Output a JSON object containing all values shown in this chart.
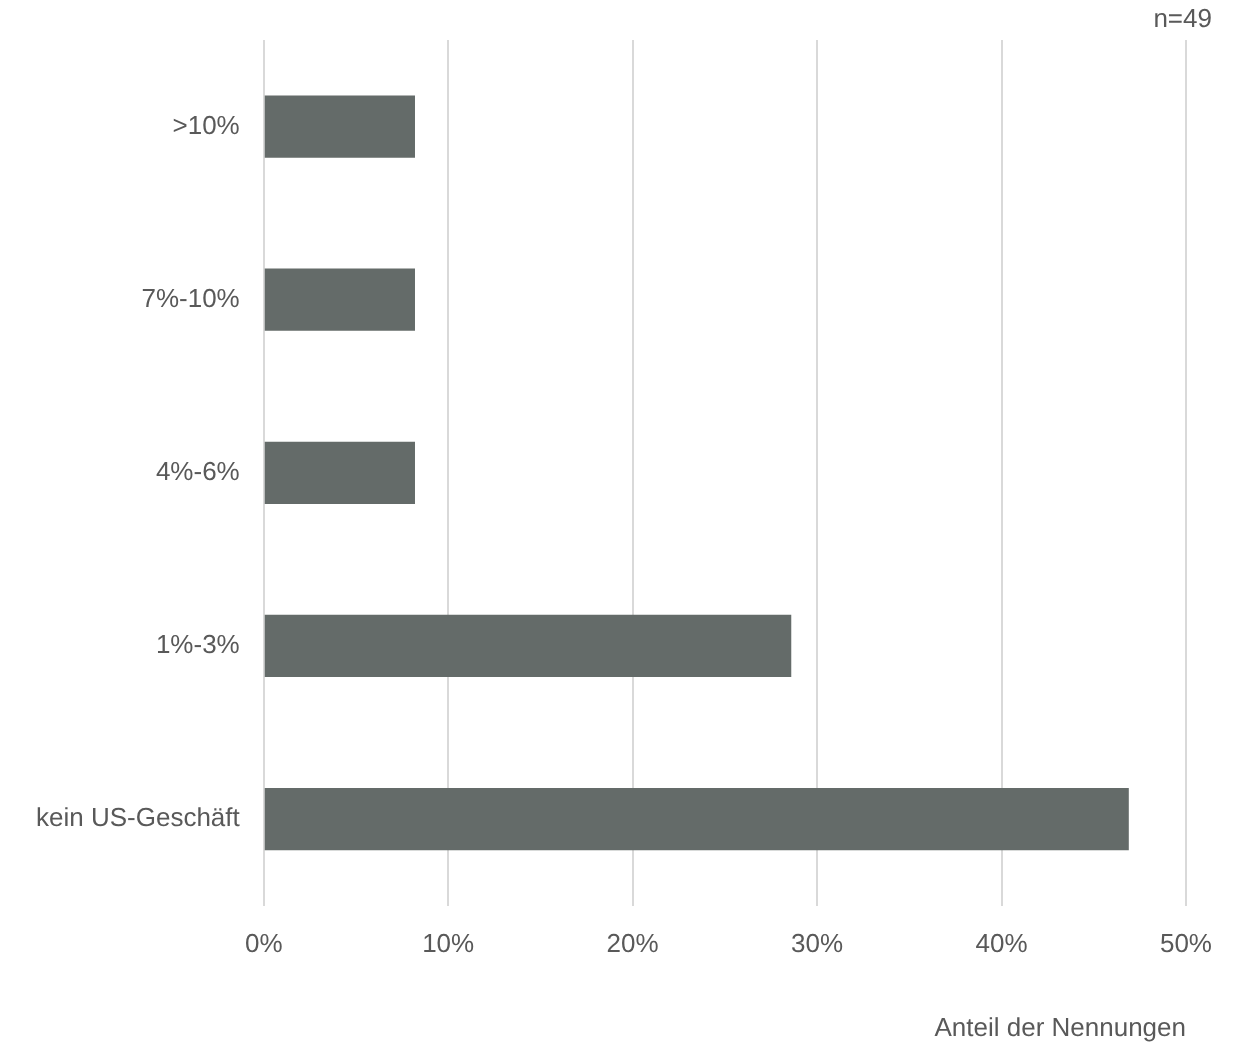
{
  "chart_data": {
    "type": "bar",
    "orientation": "horizontal",
    "categories": [
      ">10%",
      "7%-10%",
      "4%-6%",
      "1%-3%",
      "kein US-Geschäft"
    ],
    "values": [
      8.2,
      8.2,
      8.2,
      28.6,
      46.9
    ],
    "color": "#646b69",
    "xlabel": "Anteil der Nennungen",
    "annotations": [
      "n=49"
    ],
    "xlim": [
      0,
      50
    ],
    "xticks": [
      {
        "value": 0,
        "label": "0%"
      },
      {
        "value": 10,
        "label": "10%"
      },
      {
        "value": 20,
        "label": "20%"
      },
      {
        "value": 30,
        "label": "30%"
      },
      {
        "value": 40,
        "label": "40%"
      },
      {
        "value": 50,
        "label": "50%"
      }
    ],
    "grid": "x",
    "legend": false
  }
}
